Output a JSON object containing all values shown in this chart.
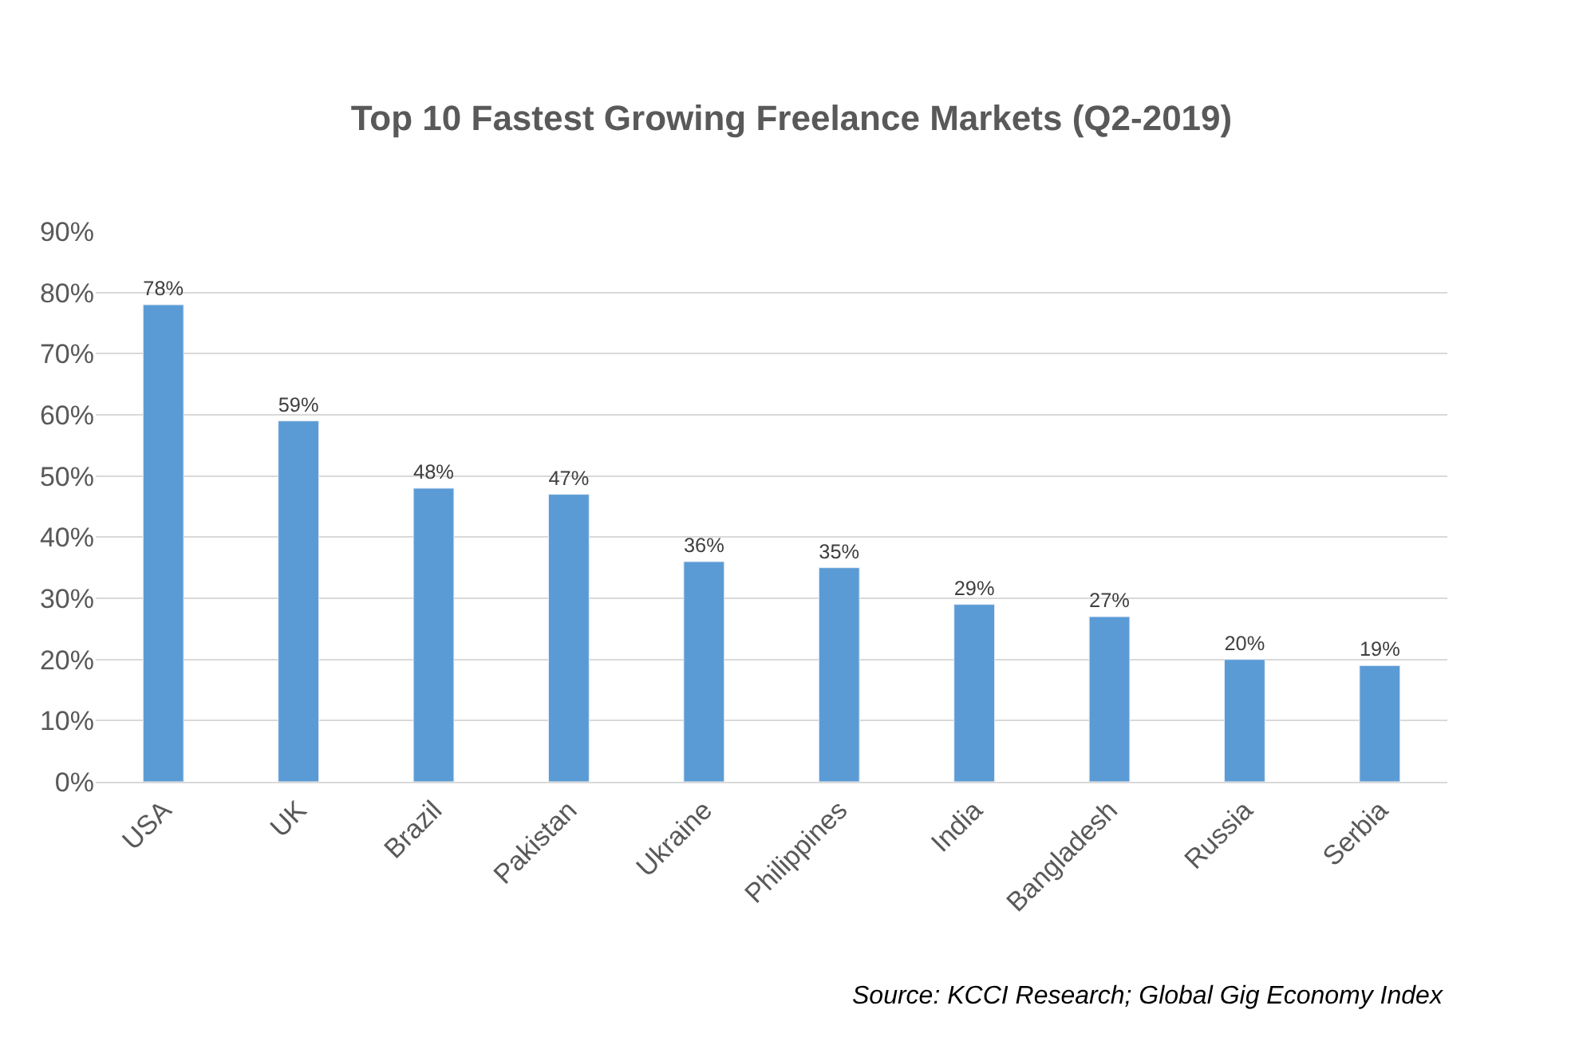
{
  "chart_data": {
    "type": "bar",
    "title": "Top 10 Fastest Growing Freelance Markets (Q2-2019)",
    "categories": [
      "USA",
      "UK",
      "Brazil",
      "Pakistan",
      "Ukraine",
      "Philippines",
      "India",
      "Bangladesh",
      "Russia",
      "Serbia"
    ],
    "values": [
      78,
      59,
      48,
      47,
      36,
      35,
      29,
      27,
      20,
      19
    ],
    "value_labels": [
      "78%",
      "59%",
      "48%",
      "47%",
      "36%",
      "35%",
      "29%",
      "27%",
      "20%",
      "19%"
    ],
    "color": "#5b9bd5",
    "ylim": [
      0,
      90
    ],
    "yticks": [
      {
        "value": 0,
        "label": "0%"
      },
      {
        "value": 10,
        "label": "10%"
      },
      {
        "value": 20,
        "label": "20%"
      },
      {
        "value": 30,
        "label": "30%"
      },
      {
        "value": 40,
        "label": "40%"
      },
      {
        "value": 50,
        "label": "50%"
      },
      {
        "value": 60,
        "label": "60%"
      },
      {
        "value": 70,
        "label": "70%"
      },
      {
        "value": 80,
        "label": "80%"
      },
      {
        "value": 90,
        "label": "90%"
      }
    ],
    "grid": "y",
    "legend": false,
    "annotations": [
      "Source: KCCI Research; Global Gig Economy Index"
    ]
  }
}
